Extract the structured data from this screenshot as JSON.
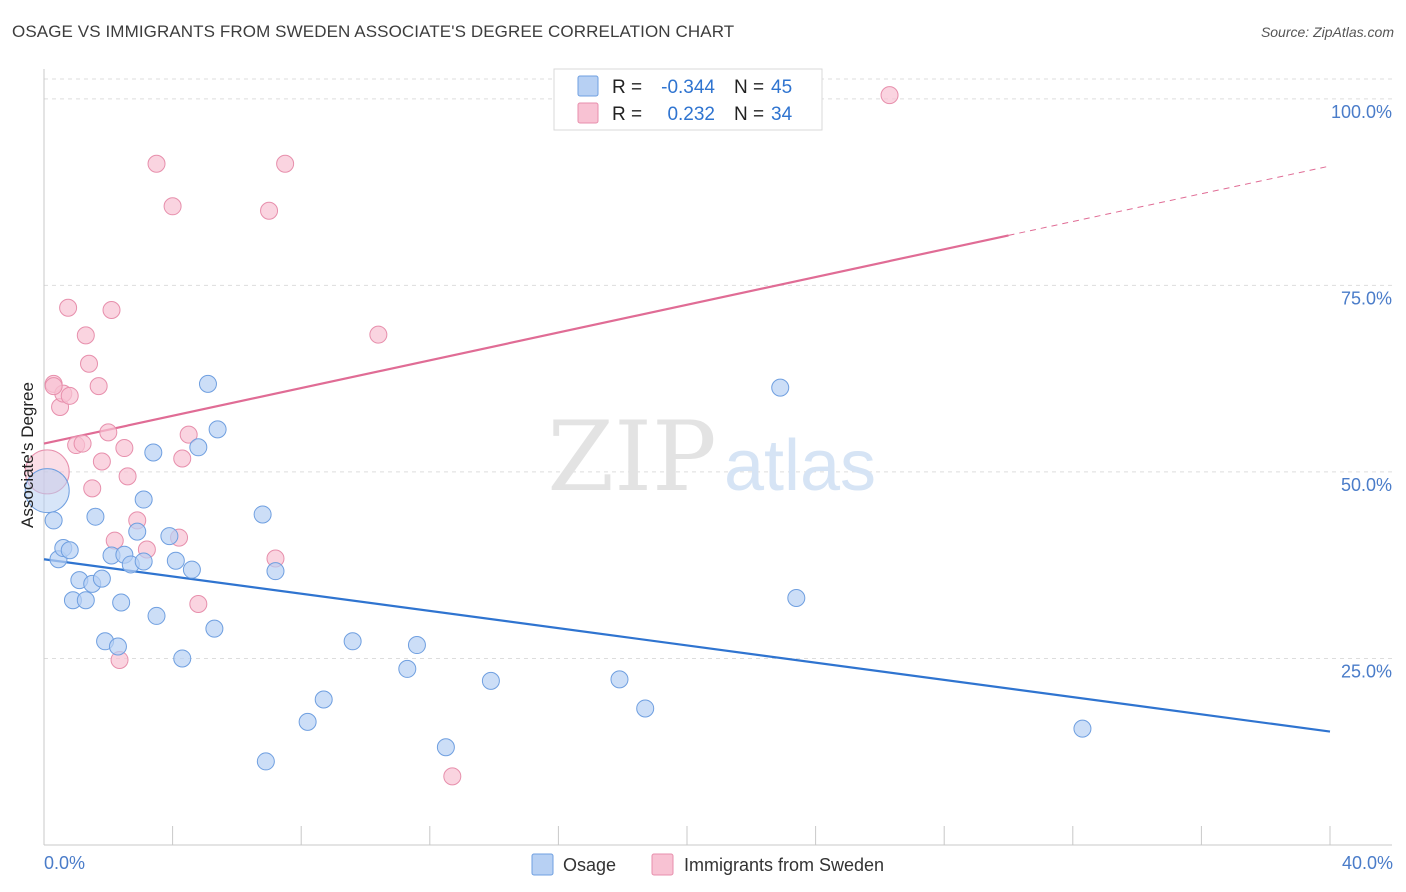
{
  "title": "OSAGE VS IMMIGRANTS FROM SWEDEN ASSOCIATE'S DEGREE CORRELATION CHART",
  "source": "Source: ZipAtlas.com",
  "watermark": {
    "zip": "ZIP",
    "atlas": "atlas"
  },
  "colors": {
    "osage_fill": "#b7d0f3",
    "osage_stroke": "#6f9fe0",
    "osage_line": "#2f74d0",
    "sweden_fill": "#f8c2d3",
    "sweden_stroke": "#e78fac",
    "sweden_line": "#e06c95",
    "axis_label": "#4a7cc9",
    "grid": "#dddddd"
  },
  "legend": {
    "rows": [
      {
        "r_label": "R = ",
        "r_value": "-0.344",
        "n_label": "N = ",
        "n_value": "45"
      },
      {
        "r_label": "R = ",
        "r_value": "0.232",
        "n_label": "N = ",
        "n_value": "34"
      }
    ]
  },
  "bottom_legend": [
    "Osage",
    "Immigrants from Sweden"
  ],
  "chart_data": {
    "type": "scatter",
    "ylabel": "Associate's Degree",
    "xlim": [
      0,
      40
    ],
    "ylim": [
      0,
      104
    ],
    "x_tick_labels": [
      "0.0%",
      "40.0%"
    ],
    "y_ticks": [
      25,
      50,
      75,
      100
    ],
    "y_tick_labels": [
      "25.0%",
      "50.0%",
      "75.0%",
      "100.0%"
    ],
    "grid": true,
    "legend_position": "top-center",
    "series": [
      {
        "name": "Osage",
        "r": -0.344,
        "n": 45,
        "trend": {
          "x": [
            0,
            40
          ],
          "y": [
            38.3,
            15.2
          ]
        },
        "points": [
          [
            0.1,
            47.5
          ],
          [
            0.3,
            43.5
          ],
          [
            0.45,
            38.3
          ],
          [
            0.6,
            39.8
          ],
          [
            0.8,
            39.5
          ],
          [
            0.9,
            32.8
          ],
          [
            1.1,
            35.5
          ],
          [
            1.3,
            32.8
          ],
          [
            1.5,
            35
          ],
          [
            1.6,
            44
          ],
          [
            1.8,
            35.7
          ],
          [
            1.9,
            27.3
          ],
          [
            2.1,
            38.8
          ],
          [
            2.3,
            26.6
          ],
          [
            2.4,
            32.5
          ],
          [
            2.5,
            38.9
          ],
          [
            2.7,
            37.6
          ],
          [
            2.9,
            42
          ],
          [
            3.1,
            38
          ],
          [
            3.1,
            46.3
          ],
          [
            3.4,
            52.6
          ],
          [
            3.5,
            30.7
          ],
          [
            3.9,
            41.4
          ],
          [
            4.1,
            38.1
          ],
          [
            4.3,
            25
          ],
          [
            4.6,
            36.9
          ],
          [
            4.8,
            53.3
          ],
          [
            5.1,
            61.8
          ],
          [
            5.3,
            29
          ],
          [
            5.4,
            55.7
          ],
          [
            6.8,
            44.3
          ],
          [
            6.9,
            11.2
          ],
          [
            7.2,
            36.7
          ],
          [
            8.2,
            16.5
          ],
          [
            8.7,
            19.5
          ],
          [
            9.6,
            27.3
          ],
          [
            11.3,
            23.6
          ],
          [
            11.6,
            26.8
          ],
          [
            12.5,
            13.1
          ],
          [
            13.9,
            22
          ],
          [
            17.9,
            22.2
          ],
          [
            18.7,
            18.3
          ],
          [
            22.9,
            61.3
          ],
          [
            23.4,
            33.1
          ],
          [
            32.3,
            15.6
          ]
        ]
      },
      {
        "name": "Immigrants from Sweden",
        "r": 0.232,
        "n": 34,
        "trend": {
          "x": [
            0,
            30
          ],
          "y": [
            53.8,
            81.7
          ]
        },
        "trend_dashed": {
          "x": [
            30,
            40
          ],
          "y": [
            81.7,
            91.0
          ]
        },
        "points": [
          [
            0.1,
            50
          ],
          [
            0.3,
            61.8
          ],
          [
            0.5,
            58.7
          ],
          [
            0.6,
            60.5
          ],
          [
            0.75,
            72
          ],
          [
            0.8,
            60.2
          ],
          [
            1.0,
            53.6
          ],
          [
            1.2,
            53.8
          ],
          [
            1.3,
            68.3
          ],
          [
            1.4,
            64.5
          ],
          [
            1.5,
            47.8
          ],
          [
            1.7,
            61.5
          ],
          [
            1.8,
            51.4
          ],
          [
            2.0,
            55.3
          ],
          [
            2.1,
            71.7
          ],
          [
            2.2,
            40.8
          ],
          [
            2.35,
            24.8
          ],
          [
            2.5,
            53.2
          ],
          [
            2.6,
            49.4
          ],
          [
            2.9,
            43.5
          ],
          [
            3.2,
            39.6
          ],
          [
            3.5,
            91.3
          ],
          [
            4.0,
            85.6
          ],
          [
            4.2,
            41.2
          ],
          [
            4.3,
            51.8
          ],
          [
            4.5,
            55
          ],
          [
            4.8,
            32.3
          ],
          [
            7.0,
            85
          ],
          [
            7.2,
            38.4
          ],
          [
            7.5,
            91.3
          ],
          [
            10.4,
            68.4
          ],
          [
            12.7,
            9.2
          ],
          [
            26.3,
            100.5
          ],
          [
            0.3,
            61.5
          ]
        ]
      }
    ]
  }
}
